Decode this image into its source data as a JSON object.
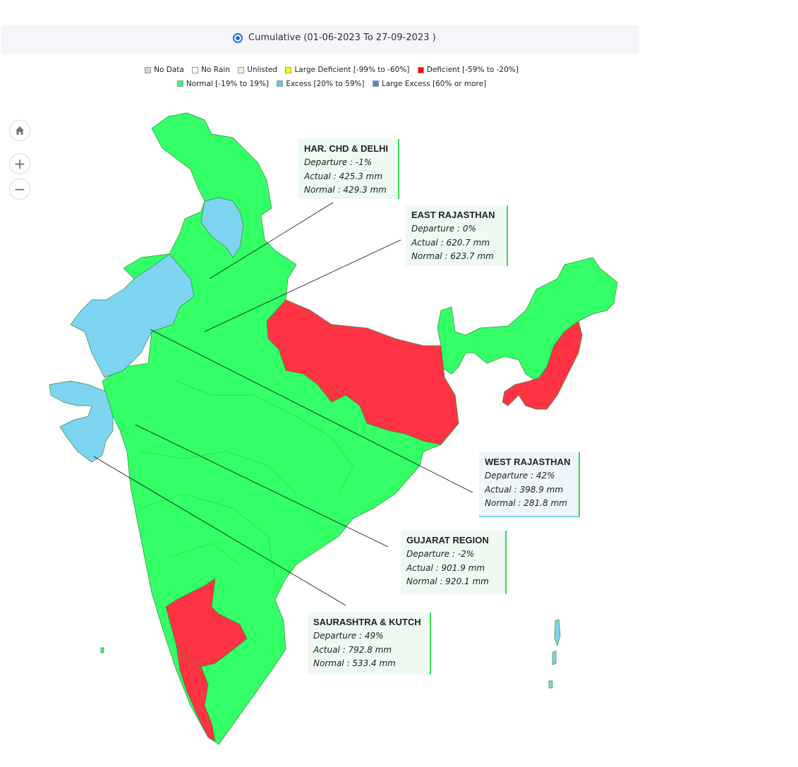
{
  "header": {
    "radio_label": "Cumulative (01-06-2023 To 27-09-2023 )"
  },
  "legend": [
    {
      "label": "No Data",
      "color": "#d4d4d4"
    },
    {
      "label": "No Rain",
      "color": "#ffffff"
    },
    {
      "label": "Unlisted",
      "color": "#f8efd6"
    },
    {
      "label": "Large Deficient [-99% to -60%]",
      "color": "#ffff00"
    },
    {
      "label": "Deficient [-59% to -20%]",
      "color": "#ff0000"
    },
    {
      "label": "Normal [-19% to 19%]",
      "color": "#33ff66"
    },
    {
      "label": "Excess [20% to 59%]",
      "color": "#5bc8f0"
    },
    {
      "label": "Large Excess [60% or more]",
      "color": "#3d8fdd"
    }
  ],
  "controls": {
    "home": "home-icon",
    "zoom_in": "+",
    "zoom_out": "−"
  },
  "colors": {
    "normal": "#33ff66",
    "deficient": "#ff3344",
    "excess": "#7dd4f0"
  },
  "callouts": [
    {
      "title": "HAR. CHD & DELHI",
      "departure": "Departure : -1%",
      "actual": "Actual : 425.3 mm",
      "normal": "Normal : 429.3 mm"
    },
    {
      "title": "EAST RAJASTHAN",
      "departure": "Departure : 0%",
      "actual": "Actual : 620.7 mm",
      "normal": "Normal : 623.7 mm"
    },
    {
      "title": "WEST RAJASTHAN",
      "departure": "Departure : 42%",
      "actual": "Actual : 398.9 mm",
      "normal": "Normal : 281.8 mm"
    },
    {
      "title": "GUJARAT REGION",
      "departure": "Departure : -2%",
      "actual": "Actual : 901.9 mm",
      "normal": "Normal : 920.1 mm"
    },
    {
      "title": "SAURASHTRA & KUTCH",
      "departure": "Departure : 49%",
      "actual": "Actual : 792.8 mm",
      "normal": "Normal : 533.4 mm"
    }
  ]
}
